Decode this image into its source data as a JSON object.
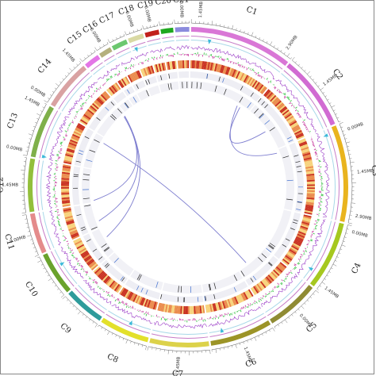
{
  "chromosomes": [
    {
      "label": "C1",
      "size": 3.3,
      "color": "#d977d6",
      "ticks": [
        "1.45MB",
        "2.90MB"
      ]
    },
    {
      "label": "C2",
      "size": 2.4,
      "color": "#d16bd2",
      "ticks": [
        "1.45MB"
      ]
    },
    {
      "label": "C3",
      "size": 3.1,
      "color": "#e9b41e",
      "ticks": [
        "0.00MB",
        "1.45MB",
        "2.90MB"
      ]
    },
    {
      "label": "C4",
      "size": 2.2,
      "color": "#a6c81f",
      "ticks": [
        "0.00MB",
        "1.45MB"
      ]
    },
    {
      "label": "C5",
      "size": 1.7,
      "color": "#8f8b33",
      "ticks": [
        "0.00MB"
      ]
    },
    {
      "label": "C6",
      "size": 2.0,
      "color": "#9c9427",
      "ticks": [
        "1.45MB"
      ]
    },
    {
      "label": "C7",
      "size": 1.9,
      "color": "#dcd24a",
      "ticks": [
        "1.45MB"
      ]
    },
    {
      "label": "C8",
      "size": 1.6,
      "color": "#e3e02a",
      "ticks": []
    },
    {
      "label": "C9",
      "size": 1.3,
      "color": "#2e9b9b",
      "ticks": []
    },
    {
      "label": "C10",
      "size": 1.4,
      "color": "#6aa22c",
      "ticks": []
    },
    {
      "label": "C11",
      "size": 1.3,
      "color": "#e48b8b",
      "ticks": [
        "0.00MB"
      ]
    },
    {
      "label": "C12",
      "size": 1.7,
      "color": "#93bf3b",
      "ticks": [
        "1.45MB"
      ]
    },
    {
      "label": "C13",
      "size": 1.7,
      "color": "#7fb04a",
      "ticks": [
        "0.00MB",
        "1.45MB"
      ]
    },
    {
      "label": "C14",
      "size": 1.6,
      "color": "#d9a2a2",
      "ticks": [
        "0.00MB",
        "1.45MB"
      ]
    },
    {
      "label": "C15",
      "size": 0.5,
      "color": "#e376e6",
      "ticks": []
    },
    {
      "label": "C16",
      "size": 0.4,
      "color": "#b4b07d",
      "ticks": [
        "0.00MB"
      ]
    },
    {
      "label": "C17",
      "size": 0.5,
      "color": "#6cc76f",
      "ticks": []
    },
    {
      "label": "C18",
      "size": 0.5,
      "color": "#d9d9a3",
      "ticks": [
        "0.00MB"
      ]
    },
    {
      "label": "C19",
      "size": 0.45,
      "color": "#c1201b",
      "ticks": [
        "0.00MB"
      ]
    },
    {
      "label": "C20",
      "size": 0.4,
      "color": "#1fa81f",
      "ticks": []
    },
    {
      "label": "C21",
      "size": 0.45,
      "color": "#8b8bdd",
      "ticks": [
        "0.00MB"
      ]
    }
  ],
  "links": [
    {
      "from_chr": 0,
      "from_pos": 0.85,
      "to_chr": 1,
      "to_pos": 0.55
    },
    {
      "from_chr": 0,
      "from_pos": 0.8,
      "to_chr": 2,
      "to_pos": 0.05
    },
    {
      "from_chr": 13,
      "from_pos": 0.95,
      "to_chr": 9,
      "to_pos": 0.6
    },
    {
      "from_chr": 13,
      "from_pos": 0.95,
      "to_chr": 10,
      "to_pos": 0.25
    },
    {
      "from_chr": 13,
      "from_pos": 0.92,
      "to_chr": 11,
      "to_pos": 0.05
    },
    {
      "from_chr": 12,
      "from_pos": 0.85,
      "to_chr": 4,
      "to_pos": 0.7
    }
  ],
  "colors": {
    "link": "#7f7fd0",
    "heat_high": "#c9301f",
    "heat_mid": "#ea8a4a",
    "heat_low": "#f7d27a",
    "gc_line": "#9b3dc7",
    "gc_skew_pos": "#2bbf3a",
    "gc_skew_neg": "#c4359b",
    "marker": "#3bb9d9"
  }
}
